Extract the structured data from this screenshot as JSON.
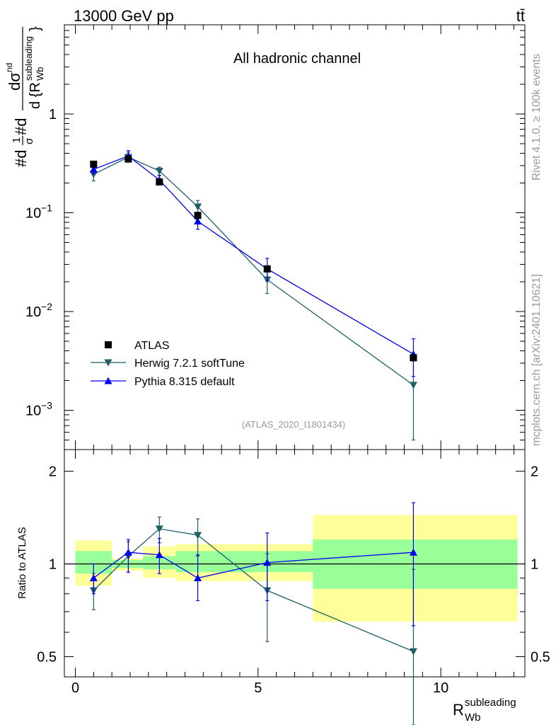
{
  "header": {
    "energy_label": "13000 GeV pp",
    "process_label": "tt̄"
  },
  "side_labels": {
    "rivet": "Rivet 4.1.0, ≥ 100k events",
    "mcplots": "mcplots.cern.ch [arXiv:2401.10621]"
  },
  "colors": {
    "data": "#000000",
    "herwig": "#1f5f66",
    "pythia": "#0000ee",
    "band_outer": "#ffff99",
    "band_inner": "#99ff99"
  },
  "chart_data": [
    {
      "type": "scatter",
      "title": "All hadronic channel",
      "analysis_label": "(ATLAS_2020_I1801434)",
      "ylabel": "#dσ/#d(1/σ) dσ^nd / d{R_Wb^subleading}",
      "ylabel_parts": {
        "main": "#d",
        "frac_top": "1",
        "frac_bot": "σ",
        "mid": "#d",
        "big_frac_top": "dσ",
        "big_frac_top_sup": "nd",
        "big_frac_bot_pre": "d {R",
        "big_frac_bot_sup": "subleading",
        "big_frac_bot_sub": "Wb",
        "big_frac_bot_post": "}"
      },
      "yscale": "log",
      "ylim": [
        0.0004,
        8
      ],
      "xlim": [
        -0.3,
        12.3
      ],
      "ytick_labels": [
        {
          "value": 1,
          "mant": "1",
          "exp": ""
        },
        {
          "value": 0.1,
          "mant": "10",
          "exp": "−1"
        },
        {
          "value": 0.01,
          "mant": "10",
          "exp": "−2"
        },
        {
          "value": 0.001,
          "mant": "10",
          "exp": "−3"
        }
      ],
      "legend": {
        "placement": "bottom-left",
        "entries": [
          "ATLAS",
          "Herwig 7.2.1 softTune",
          "Pythia 8.315 default"
        ]
      },
      "x": [
        0.5,
        1.45,
        2.3,
        3.35,
        5.25,
        9.25
      ],
      "series": [
        {
          "name": "ATLAS",
          "marker": "square",
          "values": [
            0.31,
            0.35,
            0.205,
            0.094,
            0.027,
            0.0034
          ],
          "err_lo": [
            0.31,
            0.35,
            0.205,
            0.094,
            0.027,
            0.0034
          ],
          "err_hi": [
            0.31,
            0.35,
            0.205,
            0.094,
            0.027,
            0.0034
          ]
        },
        {
          "name": "Herwig 7.2.1 softTune",
          "marker": "triangle-down",
          "values": [
            0.245,
            0.365,
            0.265,
            0.115,
            0.021,
            0.0018
          ],
          "err_lo": [
            0.21,
            0.325,
            0.24,
            0.099,
            0.0152,
            0.0005
          ],
          "err_hi": [
            0.285,
            0.41,
            0.29,
            0.133,
            0.0275,
            0.0036
          ]
        },
        {
          "name": "Pythia 8.315 default",
          "marker": "triangle-up",
          "values": [
            0.275,
            0.375,
            0.215,
            0.082,
            0.027,
            0.0037
          ],
          "err_lo": [
            0.248,
            0.34,
            0.193,
            0.068,
            0.0205,
            0.0022
          ],
          "err_hi": [
            0.305,
            0.425,
            0.238,
            0.096,
            0.0345,
            0.0053
          ]
        }
      ]
    },
    {
      "type": "scatter",
      "ylabel": "Ratio to ATLAS",
      "xlabel_main": "R",
      "xlabel_sup": "subleading",
      "xlabel_sub": "Wb",
      "yscale": "log",
      "ylim": [
        0.43,
        2.35
      ],
      "xlim": [
        -0.3,
        12.3
      ],
      "ytick_labels": [
        {
          "value": 2,
          "label": "2"
        },
        {
          "value": 1,
          "label": "1"
        },
        {
          "value": 0.5,
          "label": "0.5"
        }
      ],
      "xtick_labels": [
        {
          "value": 0,
          "label": "0"
        },
        {
          "value": 5,
          "label": "5"
        },
        {
          "value": 10,
          "label": "10"
        }
      ],
      "bands": [
        {
          "x0": 0,
          "x1": 1,
          "outer": [
            0.85,
            1.19
          ],
          "inner": [
            0.93,
            1.1
          ]
        },
        {
          "x0": 1,
          "x1": 1.85,
          "outer": [
            0.95,
            1.04
          ],
          "inner": [
            0.97,
            1.03
          ]
        },
        {
          "x0": 1.85,
          "x1": 2.75,
          "outer": [
            0.9,
            1.14
          ],
          "inner": [
            0.96,
            1.06
          ]
        },
        {
          "x0": 2.75,
          "x1": 6.5,
          "outer": [
            0.88,
            1.16
          ],
          "inner": [
            0.94,
            1.1
          ]
        },
        {
          "x0": 6.5,
          "x1": 12.1,
          "outer": [
            0.65,
            1.44
          ],
          "inner": [
            0.83,
            1.2
          ]
        }
      ],
      "x": [
        0.5,
        1.45,
        2.3,
        3.35,
        5.25,
        9.25
      ],
      "series": [
        {
          "name": "Herwig 7.2.1 softTune",
          "marker": "triangle-down",
          "values": [
            0.82,
            1.06,
            1.3,
            1.24,
            0.82,
            0.52
          ],
          "err_lo": [
            0.71,
            0.94,
            1.17,
            1.06,
            0.56,
            0.3
          ],
          "err_hi": [
            0.93,
            1.18,
            1.42,
            1.4,
            1.08,
            0.96
          ]
        },
        {
          "name": "Pythia 8.315 default",
          "marker": "triangle-up",
          "values": [
            0.9,
            1.09,
            1.07,
            0.9,
            1.01,
            1.09
          ],
          "err_lo": [
            0.8,
            0.94,
            0.93,
            0.76,
            0.76,
            0.63
          ],
          "err_hi": [
            1.0,
            1.2,
            1.21,
            1.07,
            1.26,
            1.58
          ]
        }
      ]
    }
  ]
}
